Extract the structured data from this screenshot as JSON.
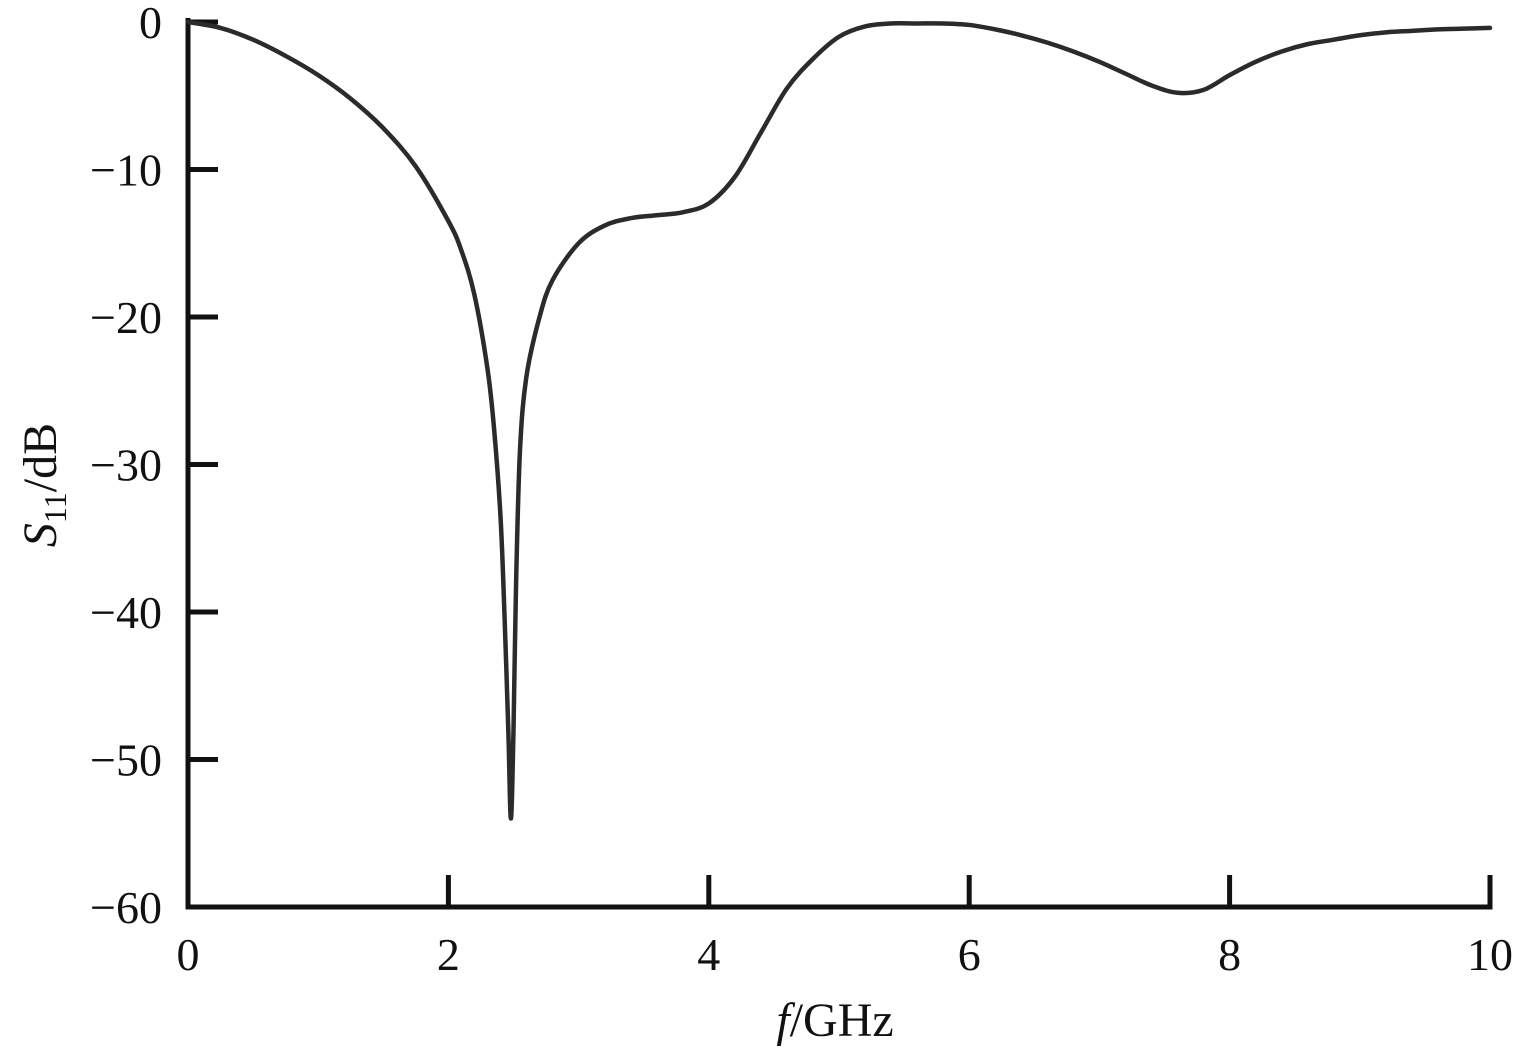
{
  "chart_data": {
    "type": "line",
    "title": "",
    "xlabel": "f/GHz",
    "xlabel_parts": {
      "italic": "f",
      "rest": "/GHz"
    },
    "ylabel": "S11/dB",
    "ylabel_parts": {
      "italic": "S",
      "subscript": "11",
      "rest": "/dB"
    },
    "xlim": [
      0,
      10
    ],
    "ylim": [
      -60,
      0
    ],
    "xticks": [
      0,
      2,
      4,
      6,
      8,
      10
    ],
    "xtick_labels": [
      "0",
      "2",
      "4",
      "6",
      "8",
      "10"
    ],
    "yticks": [
      0,
      -10,
      -20,
      -30,
      -40,
      -50,
      -60
    ],
    "ytick_labels": [
      "0",
      "−10",
      "−20",
      "−30",
      "−40",
      "−50",
      "−60"
    ],
    "grid": false,
    "legend": "none",
    "series": [
      {
        "color": "#2b2b2b",
        "x": [
          0,
          0.25,
          0.5,
          0.75,
          1.0,
          1.25,
          1.5,
          1.75,
          2.0,
          2.1,
          2.2,
          2.3,
          2.35,
          2.4,
          2.43,
          2.46,
          2.48,
          2.5,
          2.52,
          2.55,
          2.6,
          2.7,
          2.8,
          3.0,
          3.2,
          3.4,
          3.6,
          3.8,
          4.0,
          4.2,
          4.4,
          4.6,
          4.8,
          5.0,
          5.2,
          5.4,
          5.6,
          5.8,
          6.0,
          6.2,
          6.4,
          6.6,
          6.8,
          7.0,
          7.2,
          7.4,
          7.6,
          7.8,
          8.0,
          8.2,
          8.4,
          8.6,
          8.8,
          9.0,
          9.2,
          9.4,
          9.6,
          9.8,
          10.0
        ],
        "y": [
          0,
          -0.4,
          -1.2,
          -2.3,
          -3.6,
          -5.2,
          -7.2,
          -9.8,
          -13.5,
          -15.5,
          -18.5,
          -23.5,
          -27.5,
          -33.5,
          -40,
          -48,
          -54,
          -48,
          -38,
          -29,
          -24,
          -20,
          -17.5,
          -15,
          -13.8,
          -13.3,
          -13.1,
          -12.9,
          -12.3,
          -10.5,
          -7.5,
          -4.5,
          -2.5,
          -1.0,
          -0.3,
          -0.1,
          -0.1,
          -0.1,
          -0.2,
          -0.5,
          -0.9,
          -1.4,
          -2.0,
          -2.7,
          -3.5,
          -4.3,
          -4.8,
          -4.6,
          -3.6,
          -2.7,
          -2.0,
          -1.5,
          -1.2,
          -0.9,
          -0.7,
          -0.6,
          -0.5,
          -0.45,
          -0.4
        ]
      }
    ]
  }
}
